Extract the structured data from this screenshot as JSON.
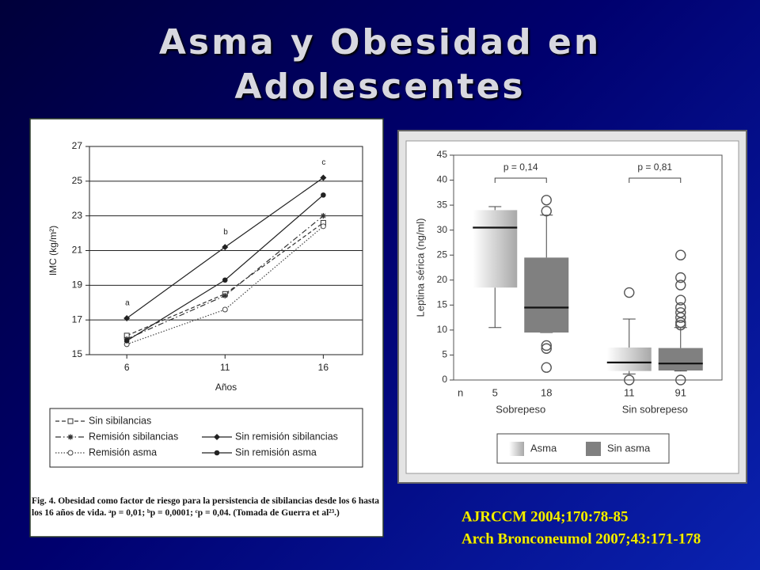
{
  "title": "Asma y Obesidad en Adolescentes",
  "chart_data": [
    {
      "type": "line",
      "x": [
        6,
        11,
        16
      ],
      "xlim": [
        4.1,
        18
      ],
      "xticks": [
        6,
        11,
        16
      ],
      "ylim": [
        15,
        27
      ],
      "yticks": [
        15,
        17,
        19,
        21,
        23,
        25,
        27
      ],
      "x_label": "Años",
      "y_label": "IMC (kg/m²)",
      "grid": true,
      "series": [
        {
          "name": "Sin sibilancias",
          "color": "#333333",
          "dash": "dashed",
          "marker": "square",
          "values": [
            16.1,
            18.5,
            22.6
          ]
        },
        {
          "name": "Remisión sibilancias",
          "color": "#333333",
          "dash": "dashdot",
          "marker": "star",
          "values": [
            15.9,
            18.4,
            23.0
          ]
        },
        {
          "name": "Sin remisión sibilancias",
          "color": "#222222",
          "dash": "solid",
          "marker": "diamond",
          "values": [
            17.1,
            21.2,
            25.2
          ],
          "point_labels": [
            "a",
            "b",
            "c"
          ]
        },
        {
          "name": "Remisión asma",
          "color": "#444444",
          "dash": "dotted",
          "marker": "circle-open",
          "values": [
            15.6,
            17.6,
            22.4
          ]
        },
        {
          "name": "Sin remisión asma",
          "color": "#222222",
          "dash": "solid",
          "marker": "circle",
          "values": [
            15.8,
            19.3,
            24.2
          ]
        }
      ],
      "caption": "Fig. 4. Obesidad como factor de riesgo para la persistencia de sibilancias desde los 6 hasta los 16 años de vida. ᵃp = 0,01; ᵇp = 0,0001; ᶜp = 0,04. (Tomada de Guerra et al²³.)"
    },
    {
      "type": "box",
      "categories": [
        "Sobrepeso",
        "Sin sobrepeso"
      ],
      "n_label": "n",
      "ylim": [
        0,
        45
      ],
      "yticks": [
        0,
        5,
        10,
        15,
        20,
        25,
        30,
        35,
        40,
        45
      ],
      "y_label": "Leptina sérica (ng/ml)",
      "annotations": [
        "p = 0,14",
        "p = 0,81"
      ],
      "series": [
        {
          "name": "Asma",
          "color": "#a8a8a8",
          "fill": "gradient",
          "n": [
            5,
            11
          ],
          "whisker_low": [
            10.5,
            1.2
          ],
          "q1": [
            18.5,
            1.8
          ],
          "median": [
            30.5,
            3.5
          ],
          "q3": [
            34,
            6.5
          ],
          "whisker_high": [
            34.7,
            12.2
          ],
          "outliers": [
            [],
            [
              17.5,
              0
            ]
          ]
        },
        {
          "name": "Sin asma",
          "color": "#808080",
          "fill": "solid",
          "n": [
            18,
            91
          ],
          "whisker_low": [
            9.5,
            1.8
          ],
          "q1": [
            9.5,
            1.9
          ],
          "median": [
            14.5,
            3.3
          ],
          "q3": [
            24.5,
            6.4
          ],
          "whisker_high": [
            33,
            10.5
          ],
          "outliers": [
            [
              36,
              33.8,
              6.9,
              6.3,
              2.5
            ],
            [
              25,
              20.5,
              19,
              16,
              14.5,
              13.5,
              12.5,
              11.5,
              11,
              0
            ]
          ]
        }
      ]
    }
  ],
  "citations": [
    "AJRCCM 2004;170:78-85",
    "Arch Bronconeumol 2007;43:171-178"
  ]
}
